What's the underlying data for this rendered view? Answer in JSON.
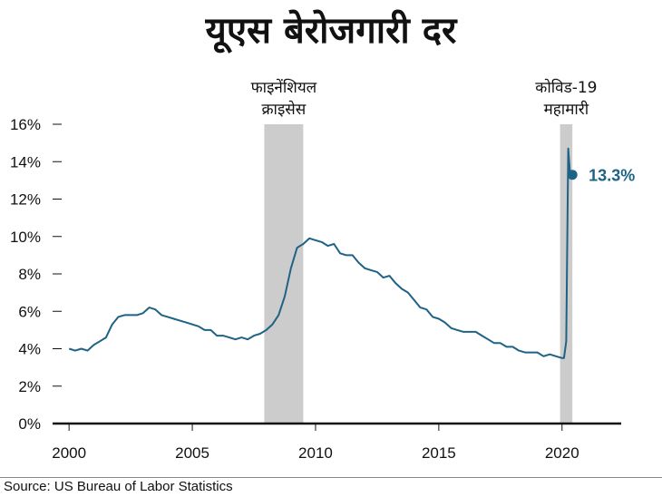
{
  "chart_data": {
    "type": "line",
    "title": "यूएस बेरोजगारी दर",
    "xlabel": "",
    "ylabel": "",
    "xlim": [
      1999.7,
      2022.4
    ],
    "ylim": [
      0,
      16
    ],
    "grid": false,
    "line_color": "#1e6285",
    "shade_color": "#cccccc",
    "xticks": [
      {
        "value": 2000,
        "label": "2000"
      },
      {
        "value": 2005,
        "label": "2005"
      },
      {
        "value": 2010,
        "label": "2010"
      },
      {
        "value": 2015,
        "label": "2015"
      },
      {
        "value": 2020,
        "label": "2020"
      }
    ],
    "yticks": [
      {
        "value": 0,
        "label": "0%"
      },
      {
        "value": 2,
        "label": "2%"
      },
      {
        "value": 4,
        "label": "4%"
      },
      {
        "value": 6,
        "label": "6%"
      },
      {
        "value": 8,
        "label": "8%"
      },
      {
        "value": 10,
        "label": "10%"
      },
      {
        "value": 12,
        "label": "12%"
      },
      {
        "value": 14,
        "label": "14%"
      },
      {
        "value": 16,
        "label": "16%"
      }
    ],
    "shaded_periods": [
      {
        "start": 2007.92,
        "end": 2009.5,
        "label_lines": [
          "फाइनेंशियल",
          "क्राइसेस"
        ]
      },
      {
        "start": 1999.95,
        "end": 2020.05,
        "label_lines": [],
        "hidden": true
      },
      {
        "start": 2019.92,
        "end": 2020.42,
        "label_lines": [
          "कोविड-19",
          "महामारी"
        ]
      }
    ],
    "x": [
      2000.0,
      2000.25,
      2000.5,
      2000.75,
      2001.0,
      2001.25,
      2001.5,
      2001.75,
      2002.0,
      2002.25,
      2002.5,
      2002.75,
      2003.0,
      2003.25,
      2003.5,
      2003.75,
      2004.0,
      2004.25,
      2004.5,
      2004.75,
      2005.0,
      2005.25,
      2005.5,
      2005.75,
      2006.0,
      2006.25,
      2006.5,
      2006.75,
      2007.0,
      2007.25,
      2007.5,
      2007.75,
      2008.0,
      2008.25,
      2008.5,
      2008.75,
      2009.0,
      2009.25,
      2009.5,
      2009.75,
      2010.0,
      2010.25,
      2010.5,
      2010.75,
      2011.0,
      2011.25,
      2011.5,
      2011.75,
      2012.0,
      2012.25,
      2012.5,
      2012.75,
      2013.0,
      2013.25,
      2013.5,
      2013.75,
      2014.0,
      2014.25,
      2014.5,
      2014.75,
      2015.0,
      2015.25,
      2015.5,
      2015.75,
      2016.0,
      2016.25,
      2016.5,
      2016.75,
      2017.0,
      2017.25,
      2017.5,
      2017.75,
      2018.0,
      2018.25,
      2018.5,
      2018.75,
      2019.0,
      2019.25,
      2019.5,
      2019.75,
      2020.0,
      2020.08,
      2020.17,
      2020.25,
      2020.33,
      2020.42
    ],
    "y": [
      4.0,
      3.9,
      4.0,
      3.9,
      4.2,
      4.4,
      4.6,
      5.3,
      5.7,
      5.8,
      5.8,
      5.8,
      5.9,
      6.2,
      6.1,
      5.8,
      5.7,
      5.6,
      5.5,
      5.4,
      5.3,
      5.2,
      5.0,
      5.0,
      4.7,
      4.7,
      4.6,
      4.5,
      4.6,
      4.5,
      4.7,
      4.8,
      5.0,
      5.3,
      5.8,
      6.8,
      8.3,
      9.4,
      9.6,
      9.9,
      9.8,
      9.7,
      9.5,
      9.6,
      9.1,
      9.0,
      9.0,
      8.6,
      8.3,
      8.2,
      8.1,
      7.8,
      7.9,
      7.5,
      7.2,
      7.0,
      6.6,
      6.2,
      6.1,
      5.7,
      5.6,
      5.4,
      5.1,
      5.0,
      4.9,
      4.9,
      4.9,
      4.7,
      4.5,
      4.3,
      4.3,
      4.1,
      4.1,
      3.9,
      3.8,
      3.8,
      3.8,
      3.6,
      3.7,
      3.6,
      3.5,
      3.5,
      4.4,
      14.7,
      13.3,
      13.3
    ],
    "end_point": {
      "x": 2020.42,
      "y": 13.3,
      "label": "13.3%"
    }
  },
  "footer": {
    "source": "Source: US Bureau of Labor Statistics"
  }
}
